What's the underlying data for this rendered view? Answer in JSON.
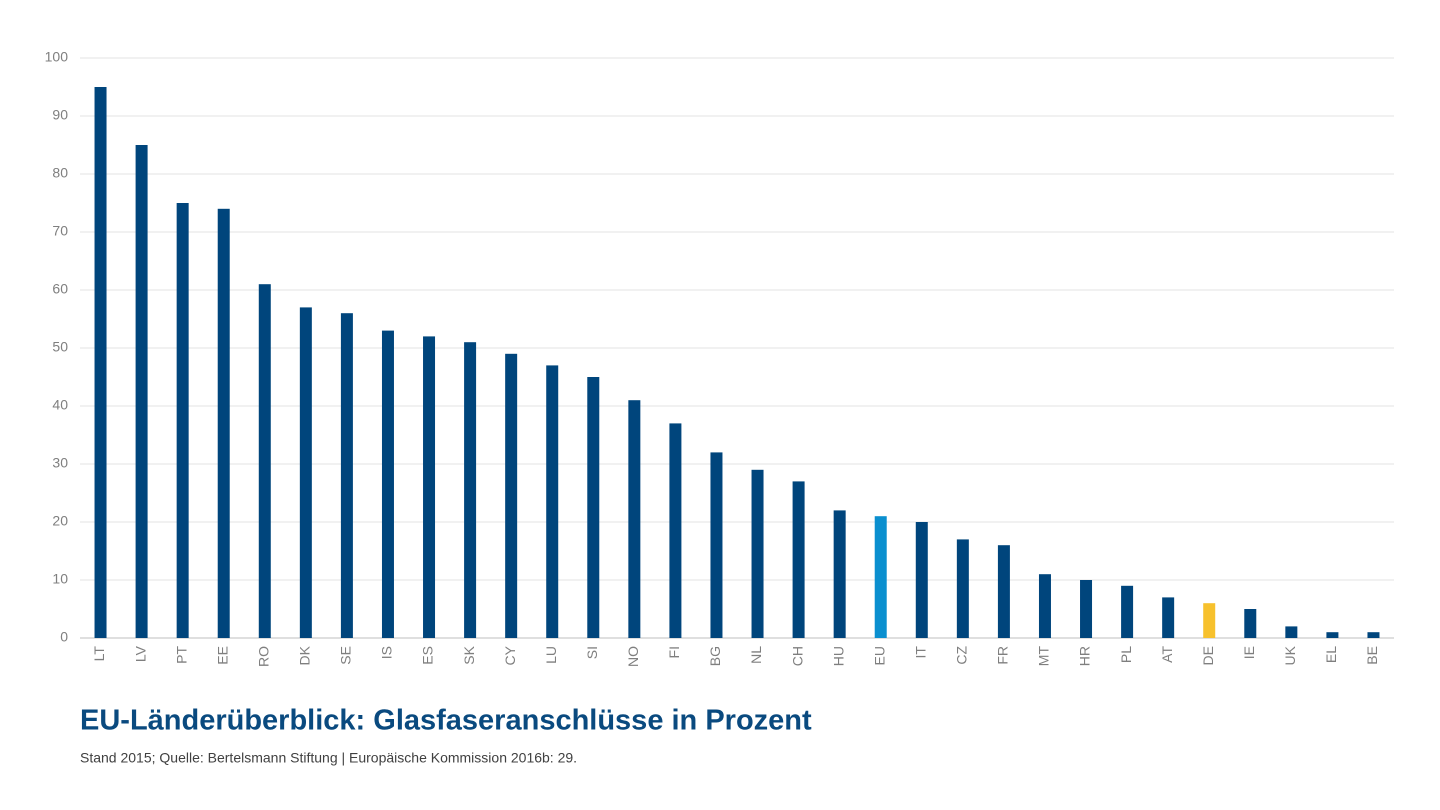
{
  "chart_data": {
    "type": "bar",
    "title": "EU-Länderüberblick: Glasfaseranschlüsse in Prozent",
    "subtitle": "Stand 2015; Quelle:  Bertelsmann Stiftung | Europäische Kommission 2016b: 29.",
    "categories": [
      "LT",
      "LV",
      "PT",
      "EE",
      "RO",
      "DK",
      "SE",
      "IS",
      "ES",
      "SK",
      "CY",
      "LU",
      "SI",
      "NO",
      "FI",
      "BG",
      "NL",
      "CH",
      "HU",
      "EU",
      "IT",
      "CZ",
      "FR",
      "MT",
      "HR",
      "PL",
      "AT",
      "DE",
      "IE",
      "UK",
      "EL",
      "BE"
    ],
    "values": [
      95,
      85,
      75,
      74,
      61,
      57,
      56,
      53,
      52,
      51,
      49,
      47,
      45,
      41,
      37,
      32,
      29,
      27,
      22,
      21,
      20,
      17,
      16,
      11,
      10,
      9,
      7,
      6,
      5,
      2,
      1,
      1
    ],
    "colors": [
      "#00457c",
      "#00457c",
      "#00457c",
      "#00457c",
      "#00457c",
      "#00457c",
      "#00457c",
      "#00457c",
      "#00457c",
      "#00457c",
      "#00457c",
      "#00457c",
      "#00457c",
      "#00457c",
      "#00457c",
      "#00457c",
      "#00457c",
      "#00457c",
      "#00457c",
      "#0a8fcf",
      "#00457c",
      "#00457c",
      "#00457c",
      "#00457c",
      "#00457c",
      "#00457c",
      "#00457c",
      "#f7c12d",
      "#00457c",
      "#00457c",
      "#00457c",
      "#00457c"
    ],
    "ylim": [
      0,
      100
    ],
    "yticks": [
      0,
      10,
      20,
      30,
      40,
      50,
      60,
      70,
      80,
      90,
      100
    ],
    "grid": true
  }
}
